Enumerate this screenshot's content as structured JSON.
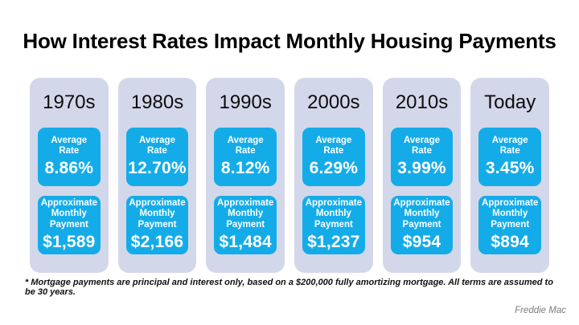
{
  "title": "How Interest Rates Impact Monthly Housing Payments",
  "footnote": "* Mortgage payments are principal and interest only, based on a $200,000 fully amortizing mortgage. All terms are assumed to be 30 years.",
  "source": "Freddie Mac",
  "labels": {
    "rate": "Average\nRate",
    "payment": "Approximate\nMonthly\nPayment"
  },
  "columns": [
    {
      "era": "1970s",
      "rate": "8.86%",
      "payment": "$1,589"
    },
    {
      "era": "1980s",
      "rate": "12.70%",
      "payment": "$2,166"
    },
    {
      "era": "1990s",
      "rate": "8.12%",
      "payment": "$1,484"
    },
    {
      "era": "2000s",
      "rate": "6.29%",
      "payment": "$1,237"
    },
    {
      "era": "2010s",
      "rate": "3.99%",
      "payment": "$954"
    },
    {
      "era": "Today",
      "rate": "3.45%",
      "payment": "$894"
    }
  ],
  "colors": {
    "accent_blue": "#14ACE8",
    "column_bg": "#D3D7EA",
    "title_text": "#000000",
    "pill_text": "#FFFFFF",
    "source_gray": "#7B7B7B"
  },
  "chart_data": {
    "type": "table",
    "title": "How Interest Rates Impact Monthly Housing Payments",
    "categories": [
      "1970s",
      "1980s",
      "1990s",
      "2000s",
      "2010s",
      "Today"
    ],
    "series": [
      {
        "name": "Average Rate (%)",
        "values": [
          8.86,
          12.7,
          8.12,
          6.29,
          3.99,
          3.45
        ]
      },
      {
        "name": "Approximate Monthly Payment ($)",
        "values": [
          1589,
          2166,
          1484,
          1237,
          954,
          894
        ]
      }
    ],
    "annotations": [
      "* Mortgage payments are principal and interest only, based on a $200,000 fully amortizing mortgage. All terms are assumed to be 30 years."
    ],
    "source": "Freddie Mac"
  }
}
